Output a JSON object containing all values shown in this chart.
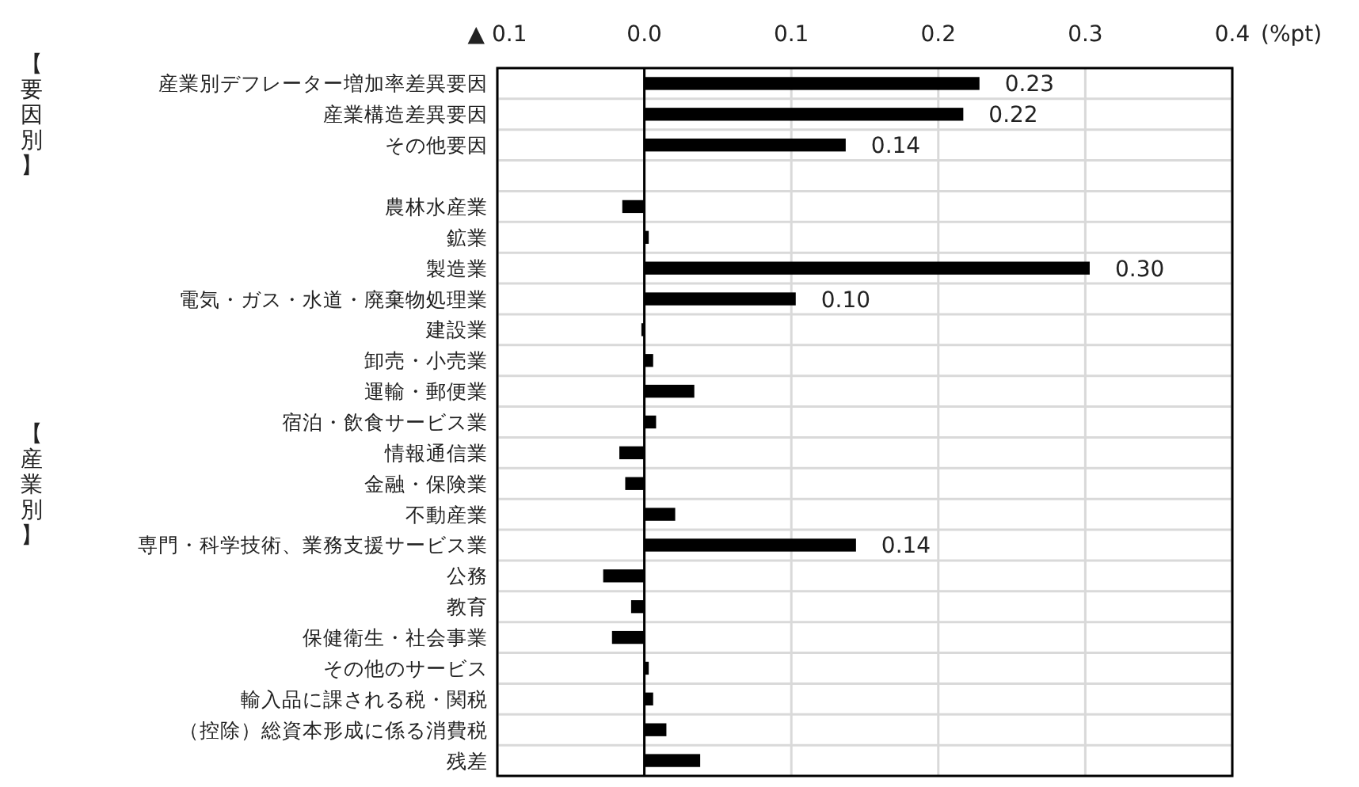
{
  "chart_data": {
    "type": "bar",
    "orientation": "horizontal",
    "categories": [
      "産業別デフレーター増加率差異要因",
      "産業構造差異要因",
      "その他要因",
      null,
      "農林水産業",
      "鉱業",
      "製造業",
      "電気・ガス・水道・廃棄物処理業",
      "建設業",
      "卸売・小売業",
      "運輸・郵便業",
      "宿泊・飲食サービス業",
      "情報通信業",
      "金融・保険業",
      "不動産業",
      "専門・科学技術、業務支援サービス業",
      "公務",
      "教育",
      "保健衛生・社会事業",
      "その他のサービス",
      "輸入品に課される税・関税",
      "（控除）総資本形成に係る消費税",
      "残差"
    ],
    "values": [
      0.228,
      0.217,
      0.137,
      null,
      -0.015,
      0.003,
      0.303,
      0.103,
      -0.002,
      0.006,
      0.034,
      0.008,
      -0.017,
      -0.013,
      0.021,
      0.144,
      -0.028,
      -0.009,
      -0.022,
      0.003,
      0.006,
      0.015,
      0.038
    ],
    "value_labels": [
      "0.23",
      "0.22",
      "0.14",
      null,
      null,
      null,
      "0.30",
      "0.10",
      null,
      null,
      null,
      null,
      null,
      null,
      null,
      "0.14",
      null,
      null,
      null,
      null,
      null,
      null,
      null
    ],
    "color": "#000000",
    "xlim": [
      -0.1,
      0.4
    ],
    "xticks": [
      {
        "value": -0.1,
        "label": "▲ 0.1"
      },
      {
        "value": 0,
        "label": "0.0"
      },
      0.1,
      0.2,
      0.3,
      0.4
    ],
    "xlabel": "(%pt)",
    "grid": true,
    "annotations": [
      "【要因別】",
      "【産業別】"
    ]
  }
}
